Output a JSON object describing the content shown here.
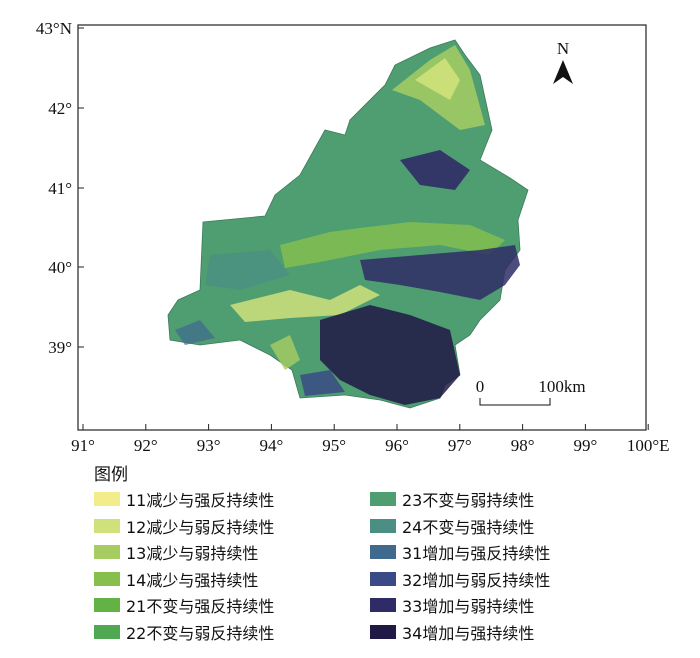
{
  "map": {
    "x_ticks": [
      "91°",
      "92°",
      "93°",
      "94°",
      "95°",
      "96°",
      "97°",
      "98°",
      "99°",
      "100°E"
    ],
    "y_ticks": [
      "43°N",
      "42°",
      "41°",
      "40°",
      "39°"
    ],
    "north_label": "N",
    "scale_bar": {
      "start": "0",
      "end": "100km"
    }
  },
  "legend": {
    "title": "图例",
    "items": [
      {
        "label": "11减少与强反持续性",
        "color": "#f2ec8a"
      },
      {
        "label": "12减少与弱反持续性",
        "color": "#cfe17a"
      },
      {
        "label": "13减少与弱持续性",
        "color": "#a6cc62"
      },
      {
        "label": "14减少与强持续性",
        "color": "#86bf4c"
      },
      {
        "label": "21不变与强反持续性",
        "color": "#63b245"
      },
      {
        "label": "22不变与弱反持续性",
        "color": "#50a852"
      },
      {
        "label": "23不变与弱持续性",
        "color": "#4f9e72"
      },
      {
        "label": "24不变与强持续性",
        "color": "#4a8e84"
      },
      {
        "label": "31增加与强反持续性",
        "color": "#3f6a8e"
      },
      {
        "label": "32增加与弱反持续性",
        "color": "#3a4a86"
      },
      {
        "label": "33增加与弱持续性",
        "color": "#2f2b66"
      },
      {
        "label": "34增加与强持续性",
        "color": "#201845"
      }
    ]
  }
}
